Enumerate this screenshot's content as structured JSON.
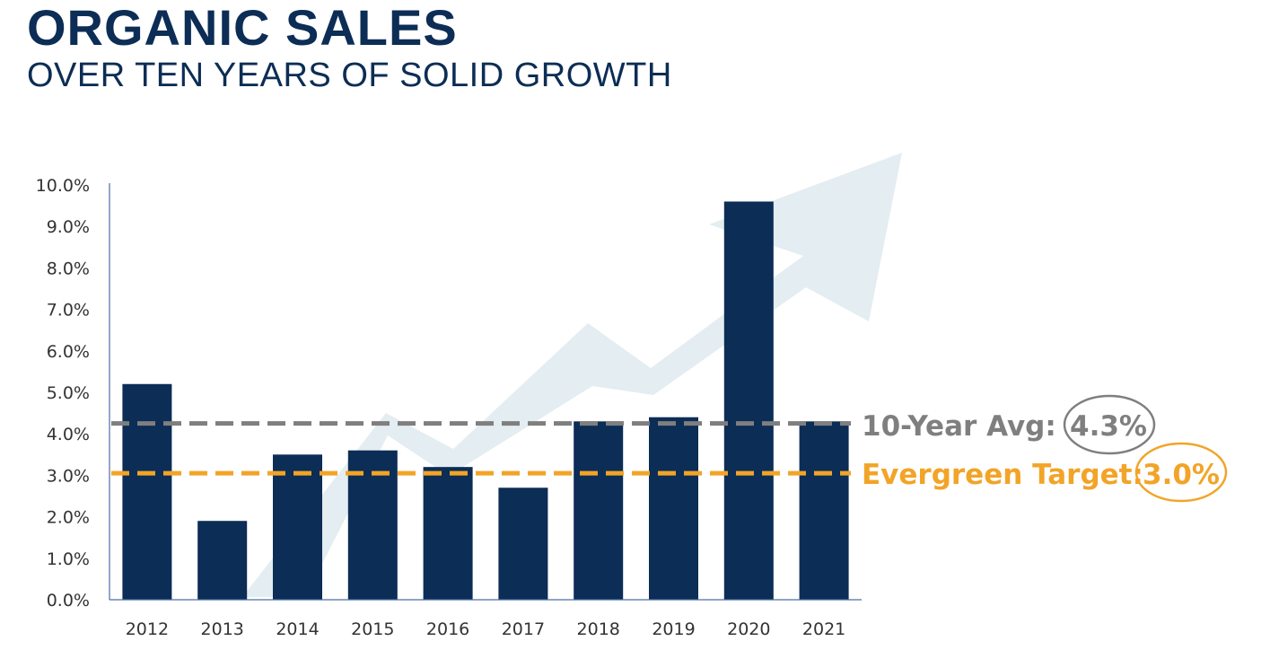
{
  "header": {
    "title": "ORGANIC SALES",
    "subtitle": "OVER TEN YEARS OF SOLID GROWTH"
  },
  "chart_data": {
    "type": "bar",
    "categories": [
      "2012",
      "2013",
      "2014",
      "2015",
      "2016",
      "2017",
      "2018",
      "2019",
      "2020",
      "2021"
    ],
    "values": [
      5.2,
      1.9,
      3.5,
      3.6,
      3.2,
      2.7,
      4.3,
      4.4,
      9.6,
      4.3
    ],
    "ylim": [
      0,
      10
    ],
    "yticks": [
      "0.0%",
      "1.0%",
      "2.0%",
      "3.0%",
      "4.0%",
      "5.0%",
      "6.0%",
      "7.0%",
      "8.0%",
      "9.0%",
      "10.0%"
    ],
    "xlabel": "",
    "ylabel": "",
    "reference_lines": [
      {
        "name": "avg",
        "label": "10-Year Avg:",
        "value_label": "4.3%",
        "value": 4.25,
        "color": "#7f7f7f"
      },
      {
        "name": "target",
        "label": "Evergreen Target:",
        "value_label": "3.0%",
        "value": 3.05,
        "color": "#f2a428"
      }
    ],
    "bar_color": "#0c2d55",
    "background_arrow_color": "#e4edf1"
  }
}
